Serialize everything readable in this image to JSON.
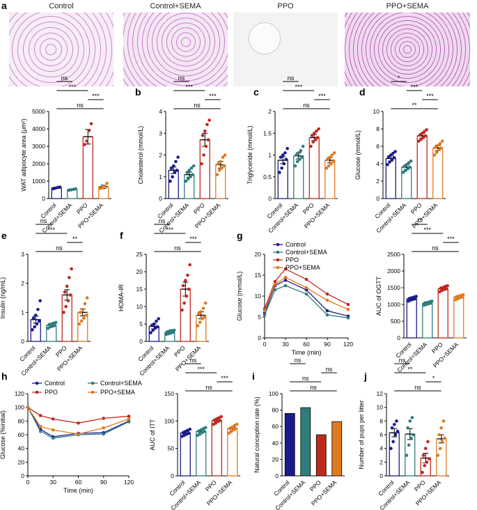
{
  "colors": {
    "control": "#1a1a8c",
    "control_sema": "#2e7d7d",
    "ppo": "#c0281e",
    "ppo_sema": "#e07a1f"
  },
  "panel_letters": [
    "a",
    "b",
    "c",
    "d",
    "e",
    "f",
    "g",
    "h",
    "i",
    "j"
  ],
  "histology": {
    "labels": [
      "Control",
      "Control+SEMA",
      "PPO",
      "PPO+SEMA"
    ]
  },
  "chart_data": [
    {
      "id": "wat",
      "type": "bar",
      "categories": [
        "Control",
        "Control+SEMA",
        "PPO",
        "PPO+SEMA"
      ],
      "values": [
        620,
        520,
        3550,
        680
      ],
      "errors": [
        40,
        40,
        420,
        90
      ],
      "points": [
        [
          560,
          600,
          640,
          660
        ],
        [
          480,
          500,
          530,
          560
        ],
        [
          3100,
          3300,
          3900,
          4300
        ],
        [
          580,
          620,
          720,
          880
        ]
      ],
      "ylabel": "WAT adipocyte area (μm²)",
      "ylim": [
        0,
        5000
      ],
      "yticks": [
        0,
        1000,
        2000,
        3000,
        4000,
        5000
      ],
      "sig": [
        {
          "a": 0,
          "b": 1,
          "t": "ns"
        },
        {
          "a": 0,
          "b": 2,
          "t": "***"
        },
        {
          "a": 2,
          "b": 3,
          "t": "***"
        },
        {
          "a": 0,
          "b": 3,
          "t": "ns"
        }
      ]
    },
    {
      "id": "chol",
      "type": "bar",
      "categories": [
        "Control",
        "Control+SEMA",
        "PPO",
        "PPO+SEMA"
      ],
      "values": [
        1.3,
        1.1,
        2.7,
        1.55
      ],
      "errors": [
        0.15,
        0.12,
        0.3,
        0.15
      ],
      "points": [
        [
          0.8,
          1.0,
          1.2,
          1.3,
          1.4,
          1.5,
          1.7,
          1.9
        ],
        [
          0.8,
          0.9,
          1.0,
          1.1,
          1.2,
          1.3,
          1.4,
          1.5
        ],
        [
          1.6,
          2.0,
          2.4,
          2.7,
          2.9,
          3.1,
          3.4,
          3.6
        ],
        [
          1.1,
          1.3,
          1.4,
          1.5,
          1.6,
          1.7,
          1.9,
          2.0
        ]
      ],
      "ylabel": "Cholesterol (mmol/L)",
      "ylim": [
        0,
        4
      ],
      "yticks": [
        0,
        1,
        2,
        3,
        4
      ],
      "sig": [
        {
          "a": 0,
          "b": 1,
          "t": "ns"
        },
        {
          "a": 0,
          "b": 2,
          "t": "***"
        },
        {
          "a": 2,
          "b": 3,
          "t": "***"
        },
        {
          "a": 0,
          "b": 3,
          "t": "ns"
        }
      ]
    },
    {
      "id": "tg",
      "type": "bar",
      "categories": [
        "Control",
        "Control+SEMA",
        "PPO",
        "PPO+SEMA"
      ],
      "values": [
        0.88,
        0.98,
        1.4,
        0.88
      ],
      "errors": [
        0.08,
        0.07,
        0.07,
        0.06
      ],
      "points": [
        [
          0.6,
          0.7,
          0.8,
          0.9,
          0.95,
          1.0,
          1.05,
          1.15
        ],
        [
          0.75,
          0.85,
          0.9,
          0.95,
          1.0,
          1.05,
          1.1,
          1.2
        ],
        [
          1.2,
          1.3,
          1.35,
          1.4,
          1.45,
          1.5,
          1.55,
          1.6
        ],
        [
          0.7,
          0.75,
          0.8,
          0.85,
          0.9,
          0.95,
          1.0,
          1.05
        ]
      ],
      "ylabel": "Triglyceride (mmol/L)",
      "ylim": [
        0,
        2.0
      ],
      "yticks": [
        0,
        0.5,
        1.0,
        1.5,
        2.0
      ],
      "sig": [
        {
          "a": 0,
          "b": 1,
          "t": "ns"
        },
        {
          "a": 0,
          "b": 2,
          "t": "***"
        },
        {
          "a": 2,
          "b": 3,
          "t": "***"
        },
        {
          "a": 0,
          "b": 3,
          "t": "ns"
        }
      ]
    },
    {
      "id": "glu",
      "type": "bar",
      "categories": [
        "Control",
        "Control+SEMA",
        "PPO",
        "PPO+SEMA"
      ],
      "values": [
        4.6,
        3.6,
        7.2,
        5.8
      ],
      "errors": [
        0.3,
        0.25,
        0.25,
        0.3
      ],
      "points": [
        [
          3.9,
          4.2,
          4.5,
          4.7,
          4.8,
          5.0,
          5.2,
          5.4
        ],
        [
          3.0,
          3.2,
          3.4,
          3.6,
          3.7,
          3.9,
          4.1,
          4.3
        ],
        [
          6.6,
          6.8,
          7.0,
          7.2,
          7.3,
          7.5,
          7.7,
          7.9
        ],
        [
          5.0,
          5.3,
          5.6,
          5.8,
          5.9,
          6.1,
          6.3,
          6.6
        ]
      ],
      "ylabel": "Glucose (mmol/L)",
      "ylim": [
        0,
        10
      ],
      "yticks": [
        0,
        2,
        4,
        6,
        8,
        10
      ],
      "sig": [
        {
          "a": 0,
          "b": 1,
          "t": "*"
        },
        {
          "a": 1,
          "b": 2,
          "t": "***"
        },
        {
          "a": 2,
          "b": 3,
          "t": "***"
        },
        {
          "a": 0,
          "b": 3,
          "t": "**"
        }
      ]
    },
    {
      "id": "ins",
      "type": "bar",
      "categories": [
        "Control",
        "Control+SEMA",
        "PPO",
        "PPO+SEMA"
      ],
      "values": [
        0.75,
        0.55,
        1.6,
        1.0
      ],
      "errors": [
        0.12,
        0.05,
        0.18,
        0.12
      ],
      "points": [
        [
          0.4,
          0.5,
          0.6,
          0.7,
          0.8,
          0.9,
          1.1,
          1.4
        ],
        [
          0.45,
          0.5,
          0.52,
          0.55,
          0.58,
          0.6,
          0.63,
          0.65
        ],
        [
          1.0,
          1.2,
          1.4,
          1.6,
          1.7,
          1.9,
          2.2,
          2.5
        ],
        [
          0.6,
          0.7,
          0.8,
          0.9,
          1.0,
          1.1,
          1.3,
          1.5
        ]
      ],
      "ylabel": "Insulin (ng/mL)",
      "ylim": [
        0,
        3
      ],
      "yticks": [
        0,
        1,
        2,
        3
      ],
      "sig": [
        {
          "a": 0,
          "b": 1,
          "t": "ns"
        },
        {
          "a": 0,
          "b": 2,
          "t": "***"
        },
        {
          "a": 2,
          "b": 3,
          "t": "**"
        },
        {
          "a": 0,
          "b": 3,
          "t": "ns"
        }
      ]
    },
    {
      "id": "homa",
      "type": "bar",
      "categories": [
        "Control",
        "Control+SEMA",
        "PPO",
        "PPO+SEMA"
      ],
      "values": [
        4.3,
        2.6,
        15.0,
        7.5
      ],
      "errors": [
        0.7,
        0.3,
        2.0,
        1.0
      ],
      "points": [
        [
          2.5,
          3.2,
          3.8,
          4.2,
          4.6,
          5.0,
          5.8,
          6.5
        ],
        [
          2.0,
          2.2,
          2.4,
          2.6,
          2.8,
          3.0,
          3.1,
          3.2
        ],
        [
          9.0,
          11.0,
          13.0,
          15.0,
          16.0,
          17.5,
          19.0,
          22.0
        ],
        [
          4.5,
          5.5,
          6.5,
          7.0,
          8.0,
          8.5,
          9.5,
          11.0
        ]
      ],
      "ylabel": "HOMA-IR",
      "ylim": [
        0,
        25
      ],
      "yticks": [
        0,
        5,
        10,
        15,
        20,
        25
      ],
      "sig": [
        {
          "a": 0,
          "b": 1,
          "t": "ns"
        },
        {
          "a": 0,
          "b": 2,
          "t": "***"
        },
        {
          "a": 2,
          "b": 3,
          "t": "***"
        },
        {
          "a": 0,
          "b": 3,
          "t": "ns"
        }
      ]
    },
    {
      "id": "ogtt",
      "type": "line",
      "xlabel": "Time (min)",
      "ylabel": "Glucose  (mmol/L)",
      "x": [
        0,
        15,
        30,
        60,
        90,
        120
      ],
      "xlim": [
        0,
        120
      ],
      "xticks": [
        0,
        30,
        60,
        90,
        120
      ],
      "ylim": [
        0,
        20
      ],
      "yticks": [
        0,
        5,
        10,
        15,
        20
      ],
      "legend": "top-left",
      "series": [
        {
          "name": "Control",
          "values": [
            6.0,
            12.5,
            13.8,
            11.5,
            6.5,
            5.2
          ]
        },
        {
          "name": "Control+SEMA",
          "values": [
            5.5,
            11.5,
            12.5,
            10.5,
            5.5,
            4.8
          ]
        },
        {
          "name": "PPO",
          "values": [
            7.0,
            13.5,
            16.5,
            14.0,
            10.5,
            8.0
          ]
        },
        {
          "name": "PPO+SEMA",
          "values": [
            6.5,
            12.8,
            14.5,
            12.0,
            9.0,
            6.8
          ]
        }
      ]
    },
    {
      "id": "auc_ogtt",
      "type": "bar",
      "categories": [
        "Control",
        "Control+SEMA",
        "PPO",
        "PPO+SEMA"
      ],
      "values": [
        1170,
        1040,
        1470,
        1220
      ],
      "errors": [
        30,
        25,
        40,
        30
      ],
      "points": [
        [
          1100,
          1130,
          1150,
          1170,
          1180,
          1200,
          1220,
          1240
        ],
        [
          980,
          1000,
          1020,
          1040,
          1050,
          1060,
          1080,
          1100
        ],
        [
          1380,
          1420,
          1450,
          1470,
          1490,
          1510,
          1540,
          1560
        ],
        [
          1140,
          1170,
          1200,
          1220,
          1230,
          1250,
          1270,
          1290
        ]
      ],
      "ylabel": "AUC of OGTT",
      "ylim": [
        0,
        2500
      ],
      "yticks": [
        0,
        500,
        1000,
        1500,
        2000,
        2500
      ],
      "sig": [
        {
          "a": 0,
          "b": 1,
          "t": "**"
        },
        {
          "a": 0,
          "b": 2,
          "t": "***"
        },
        {
          "a": 2,
          "b": 3,
          "t": "***"
        },
        {
          "a": 0,
          "b": 3,
          "t": "ns"
        }
      ]
    },
    {
      "id": "itt",
      "type": "line",
      "xlabel": "Time (min)",
      "ylabel": "Glucose  (%initial)",
      "x": [
        0,
        15,
        30,
        60,
        90,
        120
      ],
      "xlim": [
        0,
        120
      ],
      "xticks": [
        0,
        30,
        60,
        90,
        120
      ],
      "ylim": [
        0,
        120
      ],
      "yticks": [
        0,
        20,
        40,
        60,
        80,
        100,
        120
      ],
      "legend": "top",
      "series": [
        {
          "name": "Control",
          "values": [
            100,
            68,
            57,
            62,
            63,
            80
          ]
        },
        {
          "name": "Control+SEMA",
          "values": [
            100,
            65,
            55,
            60,
            61,
            79
          ]
        },
        {
          "name": "PPO",
          "values": [
            100,
            88,
            83,
            77,
            84,
            87
          ]
        },
        {
          "name": "PPO+SEMA",
          "values": [
            100,
            72,
            67,
            61,
            70,
            83
          ]
        }
      ]
    },
    {
      "id": "auc_itt",
      "type": "bar",
      "categories": [
        "Control",
        "Control+SEMA",
        "PPO",
        "PPO+SEMA"
      ],
      "values": [
        78,
        81,
        101,
        86
      ],
      "errors": [
        2.5,
        2.5,
        2.5,
        3
      ],
      "points": [
        [
          72,
          74,
          76,
          78,
          79,
          81,
          83,
          85
        ],
        [
          74,
          76,
          79,
          81,
          82,
          84,
          86,
          88
        ],
        [
          94,
          96,
          99,
          101,
          102,
          104,
          106,
          108
        ],
        [
          78,
          81,
          84,
          86,
          87,
          89,
          92,
          94
        ]
      ],
      "ylabel": "AUC of ITT",
      "ylim": [
        0,
        150
      ],
      "yticks": [
        0,
        50,
        100,
        150
      ],
      "sig": [
        {
          "a": 0,
          "b": 1,
          "t": "ns"
        },
        {
          "a": 0,
          "b": 2,
          "t": "***"
        },
        {
          "a": 2,
          "b": 3,
          "t": "***"
        },
        {
          "a": 0,
          "b": 3,
          "t": "ns"
        }
      ]
    },
    {
      "id": "conc",
      "type": "bar",
      "categories": [
        "Control",
        "Control+SEMA",
        "PPO",
        "PPO+SEMA"
      ],
      "values": [
        76,
        83,
        50,
        66
      ],
      "errors": [
        0,
        0,
        0,
        0
      ],
      "points": [
        [],
        [],
        [],
        []
      ],
      "ylabel": "Natural conception rate (%)",
      "ylim": [
        0,
        100
      ],
      "yticks": [
        0,
        20,
        40,
        60,
        80,
        100
      ],
      "sig": [
        {
          "a": 0,
          "b": 1,
          "t": "ns"
        },
        {
          "a": 2,
          "b": 3,
          "t": "ns"
        },
        {
          "a": 0,
          "b": 2,
          "t": "ns"
        },
        {
          "a": 0,
          "b": 3,
          "t": "ns"
        }
      ]
    },
    {
      "id": "pups",
      "type": "bar",
      "categories": [
        "Control",
        "Control+SEMA",
        "PPO",
        "PPO+SEMA"
      ],
      "values": [
        6.3,
        6.1,
        2.6,
        5.4
      ],
      "errors": [
        0.6,
        0.8,
        0.7,
        0.6
      ],
      "points": [
        [
          4.0,
          5.0,
          6.0,
          6.5,
          7.0,
          7.5,
          8.0
        ],
        [
          3.0,
          4.5,
          5.5,
          6.0,
          7.0,
          8.0,
          8.5
        ],
        [
          0.5,
          1.5,
          2.0,
          2.5,
          3.0,
          4.0,
          5.0
        ],
        [
          3.0,
          4.0,
          5.0,
          5.5,
          6.0,
          7.0,
          8.0
        ]
      ],
      "ylabel": "Number of pups per litter",
      "ylim": [
        0,
        12
      ],
      "yticks": [
        0,
        2,
        4,
        6,
        8,
        10,
        12
      ],
      "sig": [
        {
          "a": 0,
          "b": 1,
          "t": "ns"
        },
        {
          "a": 0,
          "b": 2,
          "t": "**"
        },
        {
          "a": 2,
          "b": 3,
          "t": "*"
        },
        {
          "a": 0,
          "b": 3,
          "t": "ns"
        }
      ]
    }
  ]
}
